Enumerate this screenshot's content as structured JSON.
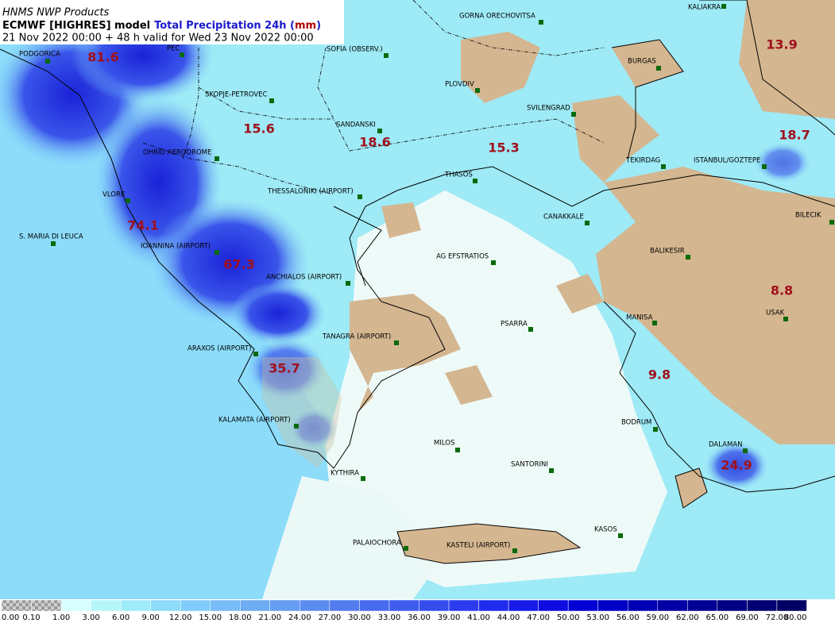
{
  "header": {
    "source": "HNMS NWP Products",
    "title_segments": [
      {
        "text": "ECMWF [HIGHRES] model",
        "color": "#000000"
      },
      {
        "text": "Total Precipitation 24h (",
        "color": "#1a1acc"
      },
      {
        "text": "mm",
        "color": "#b00000"
      },
      {
        "text": ")",
        "color": "#1a1acc"
      }
    ],
    "validity": "21 Nov 2022 00:00 + 48 h valid for Wed 23 Nov 2022 00:00"
  },
  "stations": [
    "GORNA ORECHOVITSA",
    "KALIAKRA",
    "SOFIA (OBSERV.)",
    "BURGAS",
    "PLOVDIV",
    "SKOPJE-PETROVEC",
    "SVILENGRAD",
    "SANDANSKI",
    "OHRID AERODROME",
    "TEKIRDAG",
    "ISTANBUL/GOZTEPE",
    "THASOS",
    "THESSALONIKI (AIRPORT)",
    "VLORE",
    "CANAKKALE",
    "BILECIK",
    "S. MARIA DI LEUCA",
    "IOANNINA (AIRPORT)",
    "AG EFSTRATIOS",
    "BALIKESIR",
    "ANCHIALOS (AIRPORT)",
    "USAK",
    "MANISA",
    "PSARRA",
    "TANAGRA (AIRPORT)",
    "ARAXOS (AIRPORT)",
    "KALAMATA (AIRPORT)",
    "BODRUM",
    "MILOS",
    "DALAMAN",
    "SANTORINI",
    "KYTHIRA",
    "KASOS",
    "PALAIOCHORA",
    "KASTELI (AIRPORT)",
    "PEC",
    "PODGORICA"
  ],
  "maxima": [
    81.6,
    15.6,
    18.6,
    15.3,
    13.9,
    18.7,
    74.1,
    67.3,
    8.8,
    9.8,
    35.7,
    24.9
  ],
  "colorbar": {
    "labels": [
      "0.00",
      "0.10",
      "1.00",
      "3.00",
      "6.00",
      "9.00",
      "12.00",
      "15.00",
      "18.00",
      "21.00",
      "24.00",
      "27.00",
      "30.00",
      "33.00",
      "36.00",
      "39.00",
      "41.00",
      "44.00",
      "47.00",
      "50.00",
      "53.00",
      "56.00",
      "59.00",
      "62.00",
      "65.00",
      "69.00",
      "72.00",
      "80.00"
    ],
    "colors": [
      "#c8c8c8",
      "#808080",
      "#d8ffff",
      "#b6f6fa",
      "#9eecfa",
      "#8cdcfa",
      "#7fccfa",
      "#78bcf8",
      "#6eacf4",
      "#669cf2",
      "#5c8cf0",
      "#527cee",
      "#486cee",
      "#3e5cee",
      "#344cee",
      "#2a3cee",
      "#202cec",
      "#161ce6",
      "#0c0ce0",
      "#0000d4",
      "#0000c4",
      "#0000b4",
      "#0000a4",
      "#000094",
      "#000084",
      "#000074",
      "#000064"
    ]
  }
}
